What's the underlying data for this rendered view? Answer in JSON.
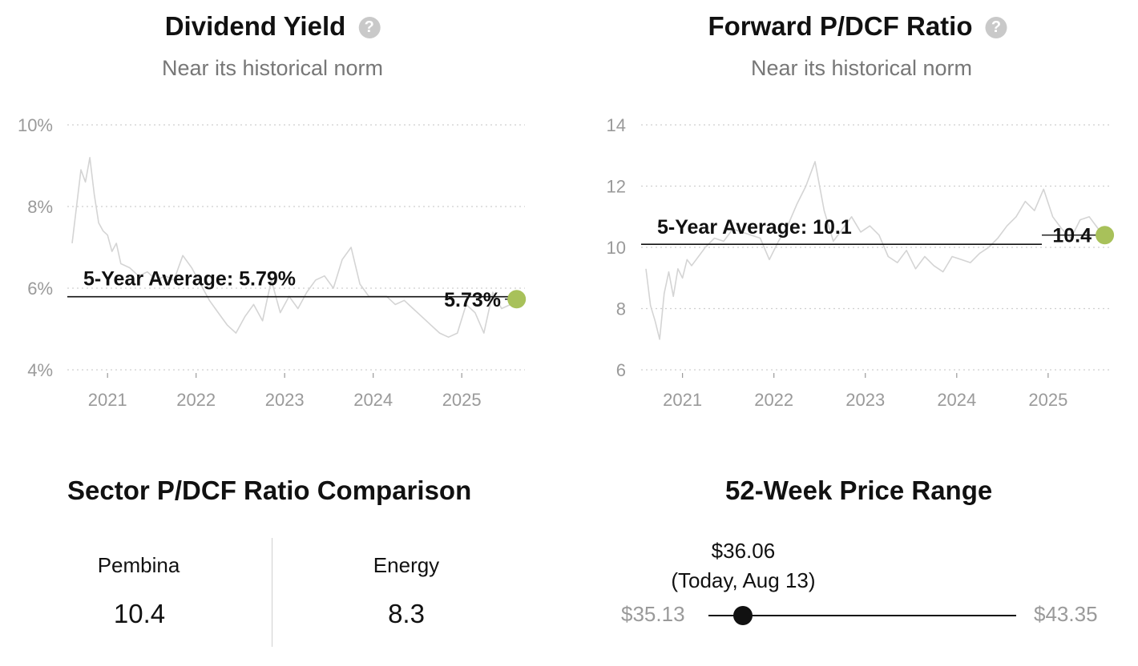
{
  "panels": {
    "yield": {
      "title": "Dividend Yield",
      "subtitle": "Near its historical norm",
      "help_icon": "question-circle-icon"
    },
    "pdcf": {
      "title": "Forward P/DCF Ratio",
      "subtitle": "Near its historical norm",
      "help_icon": "question-circle-icon"
    }
  },
  "chart_data": [
    {
      "type": "line",
      "title": "Dividend Yield",
      "subtitle": "Near its historical norm",
      "unit": "%",
      "ylim": [
        4,
        10
      ],
      "yticks": [
        4,
        6,
        8,
        10
      ],
      "ytick_labels": [
        "4%",
        "6%",
        "8%",
        "10%"
      ],
      "xlim": [
        2020.6,
        2025.65
      ],
      "xticks": [
        2021,
        2022,
        2023,
        2024,
        2025
      ],
      "xtick_labels": [
        "2021",
        "2022",
        "2023",
        "2024",
        "2025"
      ],
      "grid": true,
      "average": {
        "value": 5.79,
        "label": "5-Year Average: 5.79%"
      },
      "current": {
        "value": 5.73,
        "label": "5.73%",
        "color": "#a8c15a"
      },
      "series": [
        {
          "color": "#d4d4d4",
          "x": [
            2020.6,
            2020.65,
            2020.7,
            2020.75,
            2020.8,
            2020.85,
            2020.9,
            2020.95,
            2021.0,
            2021.05,
            2021.1,
            2021.15,
            2021.25,
            2021.35,
            2021.45,
            2021.55,
            2021.65,
            2021.75,
            2021.85,
            2021.95,
            2022.05,
            2022.15,
            2022.25,
            2022.35,
            2022.45,
            2022.55,
            2022.65,
            2022.75,
            2022.85,
            2022.95,
            2023.05,
            2023.15,
            2023.25,
            2023.35,
            2023.45,
            2023.55,
            2023.65,
            2023.75,
            2023.85,
            2023.95,
            2024.05,
            2024.15,
            2024.25,
            2024.35,
            2024.45,
            2024.55,
            2024.65,
            2024.75,
            2024.85,
            2024.95,
            2025.05,
            2025.15,
            2025.25,
            2025.35,
            2025.45,
            2025.55,
            2025.62
          ],
          "values": [
            7.1,
            8.0,
            8.9,
            8.6,
            9.2,
            8.3,
            7.6,
            7.4,
            7.3,
            6.9,
            7.1,
            6.6,
            6.5,
            6.3,
            6.4,
            6.2,
            6.3,
            6.2,
            6.8,
            6.5,
            6.1,
            5.7,
            5.4,
            5.1,
            4.9,
            5.3,
            5.6,
            5.2,
            6.2,
            5.4,
            5.8,
            5.5,
            5.9,
            6.2,
            6.3,
            6.0,
            6.7,
            7.0,
            6.1,
            5.8,
            5.8,
            5.8,
            5.6,
            5.7,
            5.5,
            5.3,
            5.1,
            4.9,
            4.8,
            4.9,
            5.6,
            5.4,
            4.9,
            5.9,
            5.5,
            5.6,
            5.73
          ]
        }
      ]
    },
    {
      "type": "line",
      "title": "Forward P/DCF Ratio",
      "subtitle": "Near its historical norm",
      "ylim": [
        6,
        14
      ],
      "yticks": [
        6,
        8,
        10,
        12,
        14
      ],
      "ytick_labels": [
        "6",
        "8",
        "10",
        "12",
        "14"
      ],
      "xlim": [
        2020.6,
        2025.65
      ],
      "xticks": [
        2021,
        2022,
        2023,
        2024,
        2025
      ],
      "xtick_labels": [
        "2021",
        "2022",
        "2023",
        "2024",
        "2025"
      ],
      "grid": true,
      "average": {
        "value": 10.1,
        "label": "5-Year Average: 10.1"
      },
      "current": {
        "value": 10.4,
        "label": "10.4",
        "color": "#a8c15a"
      },
      "series": [
        {
          "color": "#d4d4d4",
          "x": [
            2020.6,
            2020.65,
            2020.7,
            2020.75,
            2020.8,
            2020.85,
            2020.9,
            2020.95,
            2021.0,
            2021.05,
            2021.1,
            2021.15,
            2021.25,
            2021.35,
            2021.45,
            2021.55,
            2021.65,
            2021.75,
            2021.85,
            2021.95,
            2022.05,
            2022.15,
            2022.25,
            2022.35,
            2022.45,
            2022.55,
            2022.65,
            2022.75,
            2022.85,
            2022.95,
            2023.05,
            2023.15,
            2023.25,
            2023.35,
            2023.45,
            2023.55,
            2023.65,
            2023.75,
            2023.85,
            2023.95,
            2024.05,
            2024.15,
            2024.25,
            2024.35,
            2024.45,
            2024.55,
            2024.65,
            2024.75,
            2024.85,
            2024.95,
            2025.05,
            2025.15,
            2025.25,
            2025.35,
            2025.45,
            2025.55,
            2025.62
          ],
          "values": [
            9.3,
            8.1,
            7.6,
            7.0,
            8.5,
            9.2,
            8.4,
            9.3,
            9.0,
            9.6,
            9.4,
            9.6,
            10.0,
            10.3,
            10.2,
            10.6,
            10.5,
            10.4,
            10.3,
            9.6,
            10.2,
            10.7,
            11.4,
            12.0,
            12.8,
            11.2,
            10.2,
            10.6,
            11.0,
            10.5,
            10.7,
            10.4,
            9.7,
            9.5,
            9.9,
            9.3,
            9.7,
            9.4,
            9.2,
            9.7,
            9.6,
            9.5,
            9.8,
            10.0,
            10.3,
            10.7,
            11.0,
            11.5,
            11.2,
            11.9,
            11.0,
            10.6,
            10.3,
            10.9,
            11.0,
            10.6,
            10.4
          ]
        }
      ]
    }
  ],
  "comparison": {
    "title": "Sector P/DCF Ratio Comparison",
    "left": {
      "name": "Pembina",
      "value": "10.4"
    },
    "right": {
      "name": "Energy",
      "value": "8.3"
    }
  },
  "price_range": {
    "title": "52-Week Price Range",
    "low_label": "$35.13",
    "high_label": "$43.35",
    "low": 35.13,
    "high": 43.35,
    "current": 36.06,
    "current_label": "$36.06",
    "date_label": "(Today, Aug 13)"
  }
}
